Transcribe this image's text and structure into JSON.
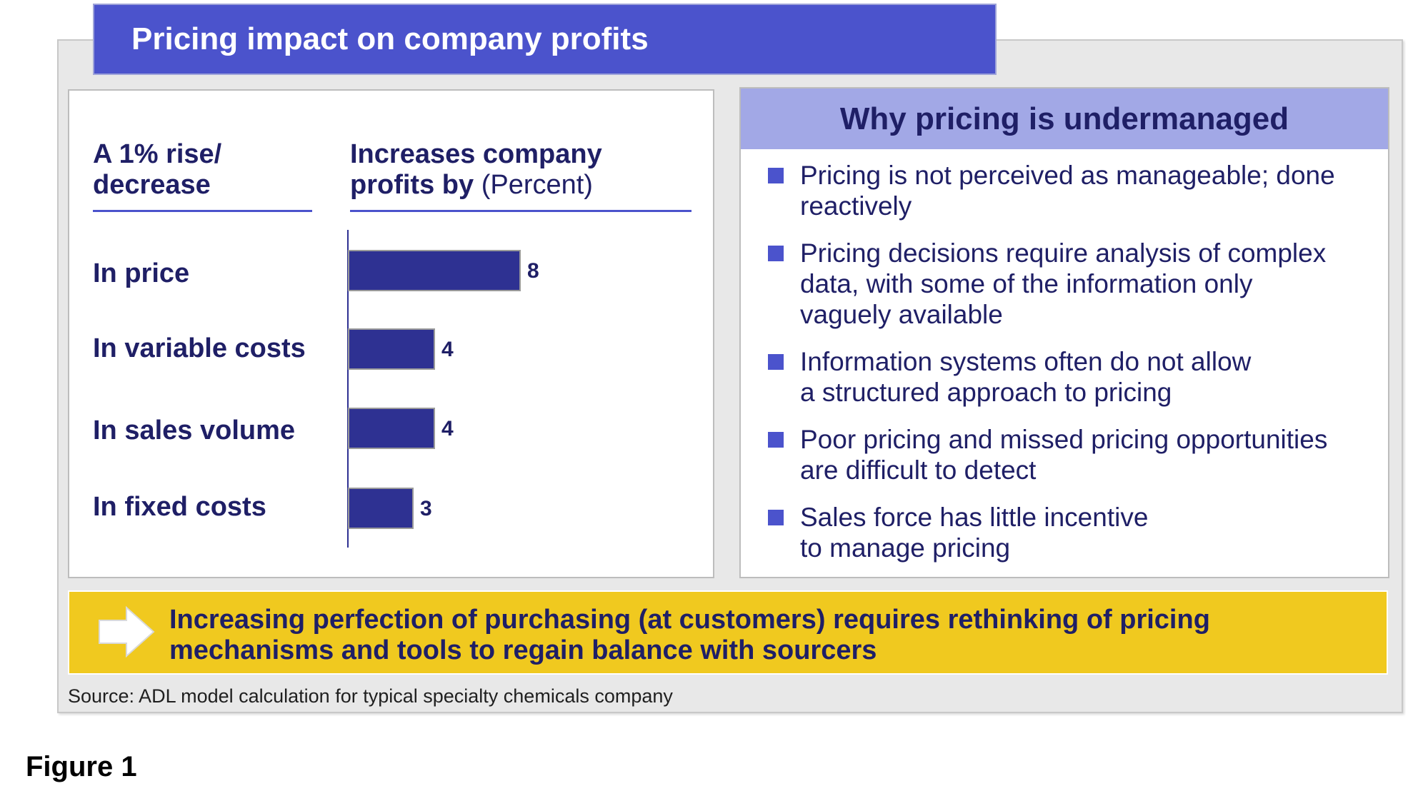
{
  "title": "Pricing impact on company profits",
  "left": {
    "col1_head_line1": "A 1% rise/",
    "col1_head_line2": "decrease",
    "col2_head_line1": "Increases company",
    "col2_head_bold": "profits by",
    "col2_head_unit": "(Percent)"
  },
  "chart_data": {
    "type": "bar",
    "orientation": "horizontal",
    "categories": [
      "In price",
      "In variable costs",
      "In sales volume",
      "In fixed costs"
    ],
    "values": [
      8,
      4,
      4,
      3
    ],
    "data_labels": [
      "8",
      "4",
      "4",
      "3"
    ],
    "xlim": [
      0,
      10
    ],
    "grid": false,
    "bar_color": "#2e3192"
  },
  "right": {
    "heading": "Why pricing is undermanaged",
    "bullets": [
      {
        "line1": "Pricing is not perceived as manageable; done",
        "line2": "reactively",
        "line3": ""
      },
      {
        "line1": "Pricing decisions require  analysis of complex",
        "line2": "data, with some of the information only",
        "line3": "vaguely available"
      },
      {
        "line1": "Information systems often do not allow",
        "line2": "a structured approach to pricing",
        "line3": ""
      },
      {
        "line1": "Poor pricing and missed pricing opportunities",
        "line2": "are difficult to detect",
        "line3": ""
      },
      {
        "line1": "Sales force has little incentive",
        "line2": "to manage pricing",
        "line3": ""
      }
    ]
  },
  "callout": {
    "line1": "Increasing perfection of purchasing (at customers) requires rethinking of pricing",
    "line2": "mechanisms and tools to regain balance with sourcers"
  },
  "source": "Source: ADL model calculation for typical specialty chemicals company",
  "figure_label": "Figure 1",
  "colors": {
    "accent": "#4b53cc",
    "bar": "#2e3192",
    "header_light": "#a2a8e6",
    "callout": "#f0c91f",
    "text": "#1f1f66"
  }
}
